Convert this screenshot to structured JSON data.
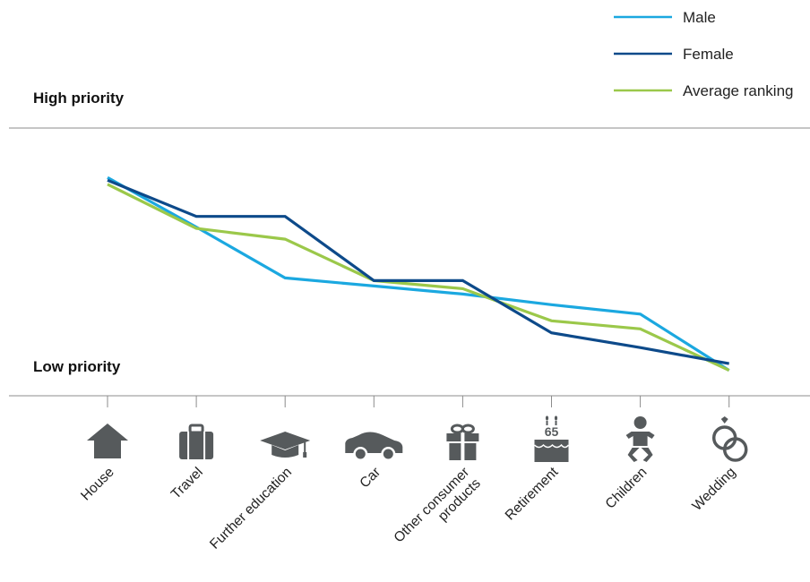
{
  "chart_data": {
    "type": "line",
    "title": "",
    "xlabel": "",
    "ylabel": "",
    "y_axis_labels": {
      "top": "High priority",
      "bottom": "Low priority"
    },
    "categories": [
      "House",
      "Travel",
      "Further education",
      "Car",
      "Other consumer products",
      "Retirement",
      "Children",
      "Wedding"
    ],
    "category_icons": [
      "house-icon",
      "suitcase-icon",
      "graduation-cap-icon",
      "car-icon",
      "gift-icon",
      "birthday-cake-icon",
      "baby-icon",
      "wedding-rings-icon"
    ],
    "cake_text": "65",
    "series": [
      {
        "name": "Male",
        "color": "#1ba8e0",
        "values": [
          8.15,
          6.3,
          4.4,
          4.1,
          3.8,
          3.4,
          3.05,
          0.95
        ]
      },
      {
        "name": "Female",
        "color": "#0d4a8a",
        "values": [
          8.05,
          6.7,
          6.7,
          4.3,
          4.3,
          2.35,
          1.8,
          1.2
        ]
      },
      {
        "name": "Average ranking",
        "color": "#9bc84a",
        "values": [
          7.9,
          6.25,
          5.85,
          4.3,
          4.0,
          2.8,
          2.5,
          0.95
        ]
      }
    ],
    "ylim": [
      0,
      10
    ],
    "grid": false,
    "legend_position": "top-right"
  }
}
